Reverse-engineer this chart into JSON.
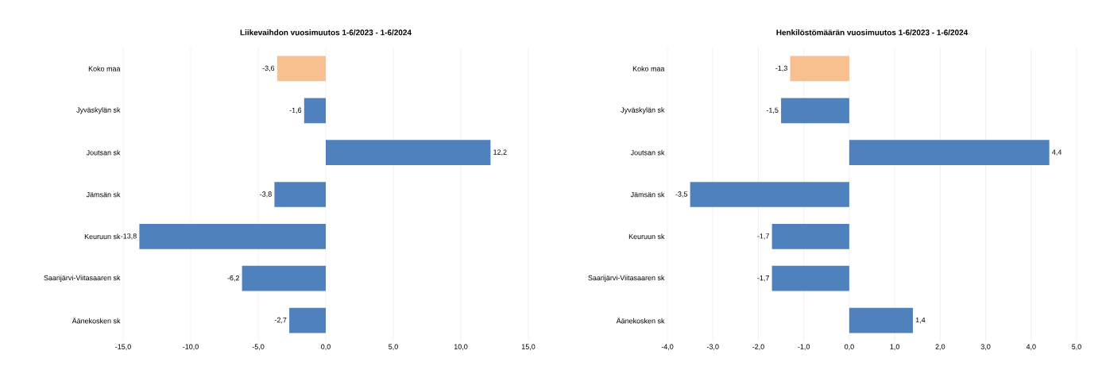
{
  "chart_data": [
    {
      "type": "bar",
      "orientation": "horizontal",
      "title": "Liikevaihdon vuosimuutos 1-6/2023 - 1-6/2024",
      "categories": [
        "Koko maa",
        "Jyväskylän sk",
        "Joutsan sk",
        "Jämsän sk",
        "Keuruun sk",
        "Saarijärvi-Viitasaaren sk",
        "Äänekosken sk"
      ],
      "values": [
        -3.6,
        -1.6,
        12.2,
        -3.8,
        -13.8,
        -6.2,
        -2.7
      ],
      "colors": [
        "#f9c08f",
        "#4f81bd",
        "#4f81bd",
        "#4f81bd",
        "#4f81bd",
        "#4f81bd",
        "#4f81bd"
      ],
      "value_labels": [
        "-3,6",
        "-1,6",
        "12,2",
        "-3,8",
        "-13,8",
        "-6,2",
        "-2,7"
      ],
      "xlim": [
        -15,
        15
      ],
      "xticks": [
        {
          "value": -15,
          "label": "-15,0"
        },
        {
          "value": -10,
          "label": "-10,0"
        },
        {
          "value": -5,
          "label": "-5,0"
        },
        {
          "value": 0,
          "label": "0,0"
        },
        {
          "value": 5,
          "label": "5,0"
        },
        {
          "value": 10,
          "label": "10,0"
        },
        {
          "value": 15,
          "label": "15,0"
        }
      ],
      "grid": "x"
    },
    {
      "type": "bar",
      "orientation": "horizontal",
      "title": "Henkilöstömäärän vuosimuutos 1-6/2023 - 1-6/2024",
      "categories": [
        "Koko maa",
        "Jyväskylän sk",
        "Joutsan sk",
        "Jämsän sk",
        "Keuruun sk",
        "Saarijärvi-Viitasaaren sk",
        "Äänekosken sk"
      ],
      "values": [
        -1.3,
        -1.5,
        4.4,
        -3.5,
        -1.7,
        -1.7,
        1.4
      ],
      "colors": [
        "#f9c08f",
        "#4f81bd",
        "#4f81bd",
        "#4f81bd",
        "#4f81bd",
        "#4f81bd",
        "#4f81bd"
      ],
      "value_labels": [
        "-1,3",
        "-1,5",
        "4,4",
        "-3,5",
        "-1,7",
        "-1,7",
        "1,4"
      ],
      "xlim": [
        -4,
        5
      ],
      "xticks": [
        {
          "value": -4,
          "label": "-4,0"
        },
        {
          "value": -3,
          "label": "-3,0"
        },
        {
          "value": -2,
          "label": "-2,0"
        },
        {
          "value": -1,
          "label": "-1,0"
        },
        {
          "value": 0,
          "label": "0,0"
        },
        {
          "value": 1,
          "label": "1,0"
        },
        {
          "value": 2,
          "label": "2,0"
        },
        {
          "value": 3,
          "label": "3,0"
        },
        {
          "value": 4,
          "label": "4,0"
        },
        {
          "value": 5,
          "label": "5,0"
        }
      ],
      "grid": "x"
    }
  ]
}
